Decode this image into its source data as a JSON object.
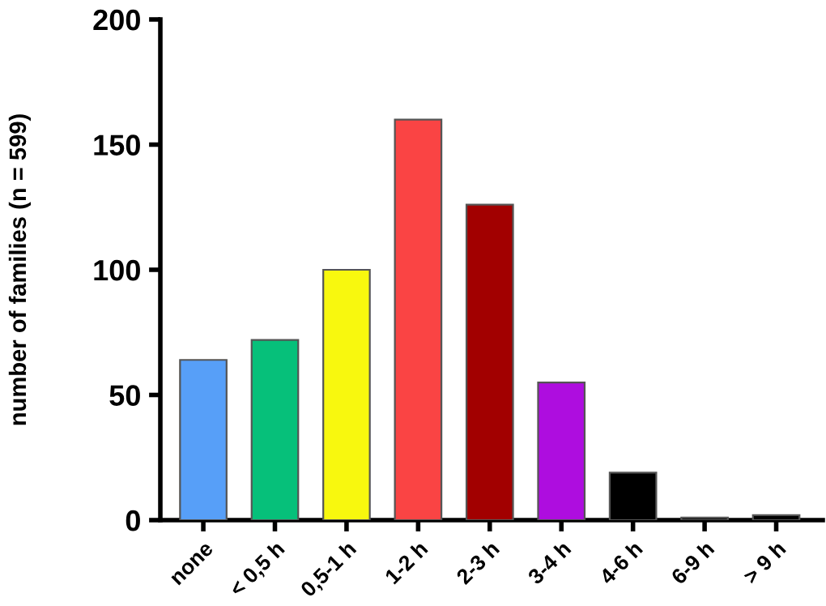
{
  "chart_data": {
    "type": "bar",
    "ylabel": "number of families (n = 599)",
    "categories": [
      "none",
      "< 0,5 h",
      "0,5-1 h",
      "1-2 h",
      "2-3 h",
      "3-4 h",
      "4-6 h",
      "6-9 h",
      "> 9 h"
    ],
    "values": [
      64,
      72,
      100,
      160,
      126,
      55,
      19,
      1,
      2
    ],
    "colors": [
      "#579ff8",
      "#06c07a",
      "#f8f80e",
      "#fa4444",
      "#a20000",
      "#ae0ddf",
      "#000000",
      "#000000",
      "#000000"
    ],
    "ylim": [
      0,
      200
    ],
    "yticks": [
      0,
      50,
      100,
      150,
      200
    ],
    "grid": false
  }
}
